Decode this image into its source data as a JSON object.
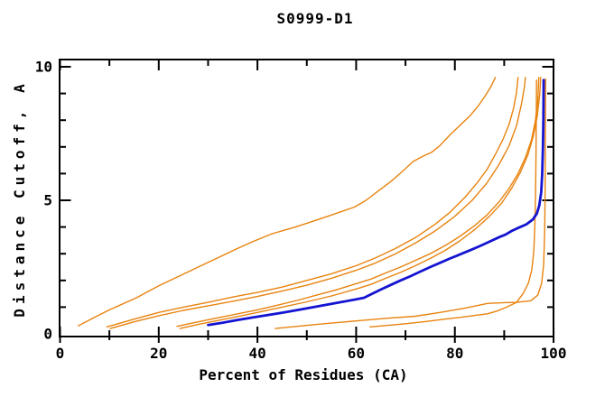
{
  "title": "S0999-D1",
  "x_axis": {
    "label": "Percent of Residues (CA)",
    "min": 0,
    "max": 100,
    "major_ticks": [
      0,
      20,
      40,
      60,
      80,
      100
    ],
    "minor_ticks": [
      10,
      30,
      50,
      70,
      90
    ]
  },
  "y_axis": {
    "label": "Distance Cutoff, A",
    "min": 0,
    "max": 10,
    "major_ticks": [
      0,
      5,
      10
    ],
    "minor_ticks": [
      1,
      2,
      3,
      4,
      6,
      7,
      8,
      9
    ]
  },
  "colors": {
    "orange_curve": "#e8830f",
    "blue_curve": "#1414d2",
    "axis": "#000000",
    "background": "#ffffff"
  },
  "chart_data": {
    "type": "line",
    "title": "S0999-D1",
    "xlabel": "Percent of Residues (CA)",
    "ylabel": "Distance Cutoff, A",
    "xlim": [
      0,
      100
    ],
    "ylim": [
      0,
      10
    ],
    "grid": false,
    "legend": false,
    "series": [
      {
        "name": "orange-curve-1",
        "color": "#e8830f",
        "width": 1.4,
        "points": [
          [
            3.7,
            0.3
          ],
          [
            7,
            0.62
          ],
          [
            10,
            0.9
          ],
          [
            15.5,
            1.35
          ],
          [
            20,
            1.8
          ],
          [
            24,
            2.15
          ],
          [
            28,
            2.5
          ],
          [
            32,
            2.85
          ],
          [
            35.4,
            3.15
          ],
          [
            39,
            3.45
          ],
          [
            43,
            3.75
          ],
          [
            47.7,
            4.0
          ],
          [
            51,
            4.2
          ],
          [
            55,
            4.45
          ],
          [
            59.7,
            4.75
          ],
          [
            62,
            5.0
          ],
          [
            64.5,
            5.35
          ],
          [
            67,
            5.7
          ],
          [
            69.5,
            6.1
          ],
          [
            71.5,
            6.45
          ],
          [
            73.5,
            6.65
          ],
          [
            75.3,
            6.8
          ],
          [
            77,
            7.05
          ],
          [
            79,
            7.45
          ],
          [
            81,
            7.8
          ],
          [
            83,
            8.15
          ],
          [
            84.8,
            8.55
          ],
          [
            86.1,
            8.9
          ],
          [
            87.3,
            9.25
          ],
          [
            88.2,
            9.6
          ]
        ]
      },
      {
        "name": "orange-curve-2",
        "color": "#e8830f",
        "width": 1.4,
        "points": [
          [
            9.5,
            0.26
          ],
          [
            15,
            0.55
          ],
          [
            20,
            0.8
          ],
          [
            25,
            1.0
          ],
          [
            30,
            1.18
          ],
          [
            35,
            1.38
          ],
          [
            40,
            1.55
          ],
          [
            45,
            1.75
          ],
          [
            50,
            2.0
          ],
          [
            55,
            2.25
          ],
          [
            60,
            2.55
          ],
          [
            64,
            2.85
          ],
          [
            68,
            3.2
          ],
          [
            72,
            3.6
          ],
          [
            76,
            4.1
          ],
          [
            79,
            4.55
          ],
          [
            82,
            5.1
          ],
          [
            84.5,
            5.65
          ],
          [
            86.5,
            6.15
          ],
          [
            88.3,
            6.75
          ],
          [
            89.8,
            7.3
          ],
          [
            91,
            7.85
          ],
          [
            91.9,
            8.45
          ],
          [
            92.5,
            9.05
          ],
          [
            92.8,
            9.6
          ]
        ]
      },
      {
        "name": "orange-curve-3",
        "color": "#e8830f",
        "width": 1.4,
        "points": [
          [
            10.2,
            0.2
          ],
          [
            15,
            0.45
          ],
          [
            20,
            0.68
          ],
          [
            25,
            0.88
          ],
          [
            30,
            1.05
          ],
          [
            35,
            1.22
          ],
          [
            40,
            1.4
          ],
          [
            45,
            1.6
          ],
          [
            50,
            1.82
          ],
          [
            55,
            2.08
          ],
          [
            60,
            2.38
          ],
          [
            64,
            2.66
          ],
          [
            68,
            3.0
          ],
          [
            72,
            3.4
          ],
          [
            76,
            3.85
          ],
          [
            80,
            4.4
          ],
          [
            83.5,
            5.0
          ],
          [
            86.5,
            5.65
          ],
          [
            89,
            6.35
          ],
          [
            91,
            7.05
          ],
          [
            92.5,
            7.8
          ],
          [
            93.5,
            8.6
          ],
          [
            94.1,
            9.25
          ],
          [
            94.3,
            9.6
          ]
        ]
      },
      {
        "name": "orange-curve-4",
        "color": "#e8830f",
        "width": 1.4,
        "points": [
          [
            23.7,
            0.28
          ],
          [
            28,
            0.45
          ],
          [
            32,
            0.6
          ],
          [
            36,
            0.75
          ],
          [
            40,
            0.9
          ],
          [
            44,
            1.07
          ],
          [
            48,
            1.25
          ],
          [
            52,
            1.45
          ],
          [
            56,
            1.65
          ],
          [
            60,
            1.88
          ],
          [
            63,
            2.05
          ],
          [
            66,
            2.28
          ],
          [
            69,
            2.5
          ],
          [
            72,
            2.75
          ],
          [
            75,
            3.0
          ],
          [
            78,
            3.3
          ],
          [
            81,
            3.65
          ],
          [
            84,
            4.05
          ],
          [
            86.5,
            4.45
          ],
          [
            89,
            4.95
          ],
          [
            91,
            5.45
          ],
          [
            92.8,
            6.0
          ],
          [
            94.3,
            6.6
          ],
          [
            95.5,
            7.25
          ],
          [
            96.3,
            7.95
          ],
          [
            96.8,
            8.75
          ],
          [
            97,
            9.6
          ]
        ]
      },
      {
        "name": "orange-curve-5",
        "color": "#e8830f",
        "width": 1.4,
        "points": [
          [
            24.3,
            0.2
          ],
          [
            28,
            0.35
          ],
          [
            32,
            0.5
          ],
          [
            36,
            0.65
          ],
          [
            40,
            0.8
          ],
          [
            45,
            1.0
          ],
          [
            50,
            1.2
          ],
          [
            55,
            1.42
          ],
          [
            60,
            1.68
          ],
          [
            63,
            1.85
          ],
          [
            66,
            2.08
          ],
          [
            69,
            2.3
          ],
          [
            72,
            2.55
          ],
          [
            75,
            2.82
          ],
          [
            78,
            3.12
          ],
          [
            81,
            3.48
          ],
          [
            84,
            3.9
          ],
          [
            87,
            4.4
          ],
          [
            89.5,
            4.9
          ],
          [
            91.5,
            5.45
          ],
          [
            93.3,
            6.05
          ],
          [
            94.8,
            6.7
          ],
          [
            95.9,
            7.4
          ],
          [
            96.7,
            8.15
          ],
          [
            97.2,
            8.95
          ],
          [
            97.4,
            9.6
          ]
        ]
      },
      {
        "name": "orange-curve-6",
        "color": "#e8830f",
        "width": 1.4,
        "points": [
          [
            43.6,
            0.2
          ],
          [
            48,
            0.28
          ],
          [
            52,
            0.35
          ],
          [
            56,
            0.42
          ],
          [
            61,
            0.5
          ],
          [
            66,
            0.58
          ],
          [
            72,
            0.66
          ],
          [
            77,
            0.8
          ],
          [
            82,
            0.96
          ],
          [
            86.6,
            1.14
          ],
          [
            90,
            1.17
          ],
          [
            92.5,
            1.18
          ],
          [
            95.4,
            1.24
          ],
          [
            96.8,
            1.45
          ],
          [
            97.6,
            1.9
          ],
          [
            98,
            2.6
          ],
          [
            98.2,
            3.8
          ],
          [
            98.3,
            5.5
          ],
          [
            98.35,
            7.5
          ],
          [
            98.4,
            9.55
          ]
        ]
      },
      {
        "name": "orange-curve-7",
        "color": "#e8830f",
        "width": 1.4,
        "points": [
          [
            62.8,
            0.26
          ],
          [
            66,
            0.31
          ],
          [
            70,
            0.38
          ],
          [
            74,
            0.46
          ],
          [
            78,
            0.55
          ],
          [
            82,
            0.64
          ],
          [
            86.6,
            0.75
          ],
          [
            88.5,
            0.85
          ],
          [
            90.5,
            1.0
          ],
          [
            92.5,
            1.18
          ],
          [
            93.8,
            1.5
          ],
          [
            94.9,
            1.9
          ],
          [
            95.6,
            2.4
          ],
          [
            96,
            3.1
          ],
          [
            96.2,
            4.0
          ],
          [
            96.35,
            5.2
          ],
          [
            96.45,
            6.6
          ],
          [
            96.5,
            8.0
          ],
          [
            96.55,
            9.5
          ]
        ]
      },
      {
        "name": "blue-highlight-curve",
        "color": "#1414d2",
        "width": 2.8,
        "points": [
          [
            30,
            0.33
          ],
          [
            33,
            0.42
          ],
          [
            36,
            0.52
          ],
          [
            39,
            0.61
          ],
          [
            42,
            0.7
          ],
          [
            45,
            0.79
          ],
          [
            48,
            0.89
          ],
          [
            51,
            0.99
          ],
          [
            54,
            1.09
          ],
          [
            57,
            1.19
          ],
          [
            60,
            1.29
          ],
          [
            61.6,
            1.35
          ],
          [
            63,
            1.48
          ],
          [
            65,
            1.66
          ],
          [
            67,
            1.83
          ],
          [
            69,
            2.0
          ],
          [
            71,
            2.16
          ],
          [
            73,
            2.33
          ],
          [
            75,
            2.5
          ],
          [
            77,
            2.66
          ],
          [
            79,
            2.82
          ],
          [
            81,
            2.97
          ],
          [
            83,
            3.12
          ],
          [
            85,
            3.28
          ],
          [
            87,
            3.45
          ],
          [
            89,
            3.62
          ],
          [
            90.3,
            3.72
          ],
          [
            91.5,
            3.85
          ],
          [
            93,
            3.98
          ],
          [
            94.5,
            4.1
          ],
          [
            95.8,
            4.28
          ],
          [
            96.6,
            4.5
          ],
          [
            97.1,
            4.8
          ],
          [
            97.5,
            5.3
          ],
          [
            97.7,
            6.0
          ],
          [
            97.85,
            7.0
          ],
          [
            97.95,
            8.0
          ],
          [
            98,
            9.5
          ]
        ]
      }
    ]
  }
}
